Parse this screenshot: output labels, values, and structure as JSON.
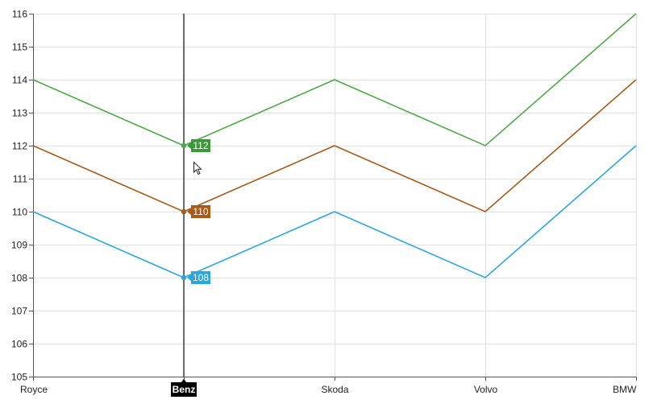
{
  "chart_data": {
    "type": "line",
    "title": "",
    "xlabel": "",
    "ylabel": "",
    "categories": [
      "Royce",
      "Benz",
      "Skoda",
      "Volvo",
      "BMW"
    ],
    "ylim": [
      105,
      116
    ],
    "y_ticks": [
      105,
      106,
      107,
      108,
      109,
      110,
      111,
      112,
      113,
      114,
      115,
      116
    ],
    "grid": true,
    "legend": "none",
    "series": [
      {
        "color": "#29a8e0",
        "values": [
          110,
          108,
          110,
          108,
          112
        ]
      },
      {
        "color": "#a85a16",
        "values": [
          112,
          110,
          112,
          110,
          114
        ]
      },
      {
        "color": "#4caa46",
        "values": [
          114,
          112,
          114,
          112,
          116
        ]
      }
    ],
    "trackball": {
      "category": "Benz",
      "labels": [
        {
          "value": "108",
          "color": "#29a8e0"
        },
        {
          "value": "110",
          "color": "#a85a16"
        },
        {
          "value": "112",
          "color": "#3a9a38"
        }
      ]
    }
  }
}
